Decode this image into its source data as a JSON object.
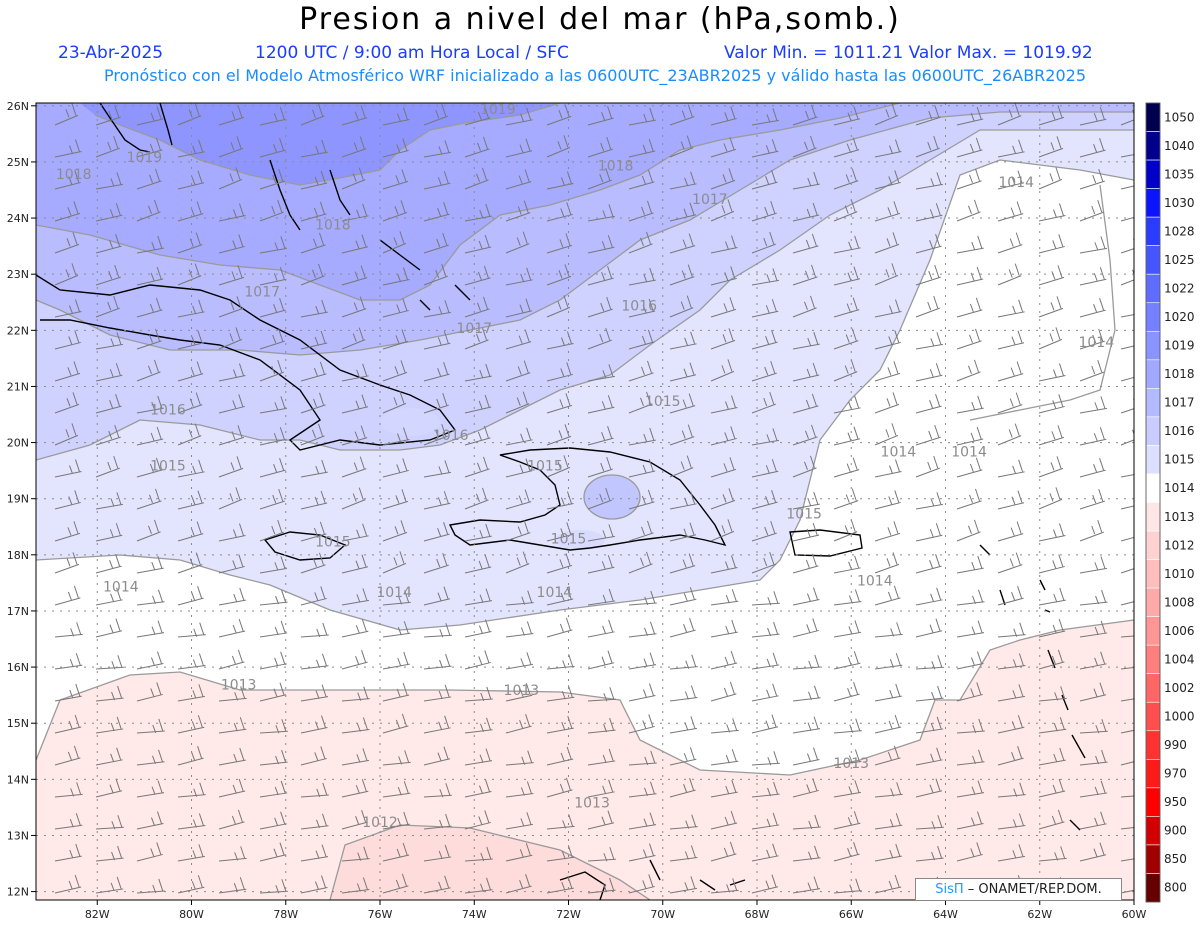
{
  "header": {
    "title": "Presion a nivel del mar (hPa,somb.)",
    "date": "23-Abr-2025",
    "time": "1200 UTC / 9:00 am Hora Local / SFC",
    "minmax": "Valor Min. = 1011.21  Valor Max. = 1019.92",
    "forecast": "Pronóstico con el Modelo Atmosférico WRF inicializado a las 0600UTC_23ABR2025 y válido hasta las  0600UTC_26ABR2025"
  },
  "axes": {
    "lat_labels": [
      "26N",
      "25N",
      "24N",
      "23N",
      "22N",
      "21N",
      "20N",
      "19N",
      "18N",
      "17N",
      "16N",
      "15N",
      "14N",
      "13N",
      "12N"
    ],
    "lon_labels": [
      "82W",
      "80W",
      "78W",
      "76W",
      "74W",
      "72W",
      "70W",
      "68W",
      "66W",
      "64W",
      "62W",
      "60W"
    ]
  },
  "legend": {
    "levels": [
      "1050",
      "1040",
      "1035",
      "1030",
      "1028",
      "1025",
      "1022",
      "1020",
      "1019",
      "1018",
      "1017",
      "1016",
      "1015",
      "1014",
      "1013",
      "1012",
      "1010",
      "1008",
      "1006",
      "1004",
      "1002",
      "1000",
      "990",
      "970",
      "950",
      "900",
      "850",
      "800"
    ],
    "colors": [
      "#000050",
      "#00008c",
      "#0000c8",
      "#0a14ff",
      "#2a3cff",
      "#4656ff",
      "#5e6cff",
      "#7480ff",
      "#8a94ff",
      "#a0a8ff",
      "#b4baff",
      "#c8ccff",
      "#dcdfff",
      "#ffffff",
      "#ffe6e6",
      "#ffd2d2",
      "#ffbebe",
      "#ffaaaa",
      "#ff9696",
      "#ff7e7e",
      "#ff6666",
      "#ff4e4e",
      "#ff3232",
      "#ff1a1a",
      "#ff0000",
      "#d20000",
      "#a00000",
      "#640000"
    ]
  },
  "contour_labels": [
    {
      "text": "1019",
      "lon": -73.5,
      "lat": 25.85
    },
    {
      "text": "1019",
      "lon": -81.0,
      "lat": 25.0
    },
    {
      "text": "1018",
      "lon": -82.5,
      "lat": 24.7
    },
    {
      "text": "1018",
      "lon": -71.0,
      "lat": 24.85
    },
    {
      "text": "1018",
      "lon": -77.0,
      "lat": 23.8
    },
    {
      "text": "1017",
      "lon": -69.0,
      "lat": 24.25
    },
    {
      "text": "1017",
      "lon": -78.5,
      "lat": 22.6
    },
    {
      "text": "1017",
      "lon": -74.0,
      "lat": 21.95
    },
    {
      "text": "1016",
      "lon": -70.5,
      "lat": 22.35
    },
    {
      "text": "1016",
      "lon": -80.5,
      "lat": 20.5
    },
    {
      "text": "1016",
      "lon": -74.5,
      "lat": 20.05
    },
    {
      "text": "1015",
      "lon": -70.0,
      "lat": 20.65
    },
    {
      "text": "1015",
      "lon": -80.5,
      "lat": 19.5
    },
    {
      "text": "1015",
      "lon": -72.5,
      "lat": 19.5
    },
    {
      "text": "1015",
      "lon": -67.0,
      "lat": 18.65
    },
    {
      "text": "1015",
      "lon": -77.0,
      "lat": 18.15
    },
    {
      "text": "1015",
      "lon": -72.0,
      "lat": 18.2
    },
    {
      "text": "1014",
      "lon": -62.5,
      "lat": 24.55
    },
    {
      "text": "1014",
      "lon": -60.8,
      "lat": 21.7
    },
    {
      "text": "1014",
      "lon": -65.0,
      "lat": 19.75
    },
    {
      "text": "1014",
      "lon": -63.5,
      "lat": 19.75
    },
    {
      "text": "1014",
      "lon": -65.5,
      "lat": 17.45
    },
    {
      "text": "1014",
      "lon": -81.5,
      "lat": 17.35
    },
    {
      "text": "1014",
      "lon": -75.7,
      "lat": 17.25
    },
    {
      "text": "1014",
      "lon": -72.3,
      "lat": 17.25
    },
    {
      "text": "1013",
      "lon": -79.0,
      "lat": 15.6
    },
    {
      "text": "1013",
      "lon": -73.0,
      "lat": 15.5
    },
    {
      "text": "1013",
      "lon": -66.0,
      "lat": 14.2
    },
    {
      "text": "1013",
      "lon": -71.5,
      "lat": 13.5
    },
    {
      "text": "1012",
      "lon": -76.0,
      "lat": 13.15
    }
  ],
  "credit": {
    "brand": "SisΠ",
    "text": "– ONAMET/REP.DOM."
  }
}
